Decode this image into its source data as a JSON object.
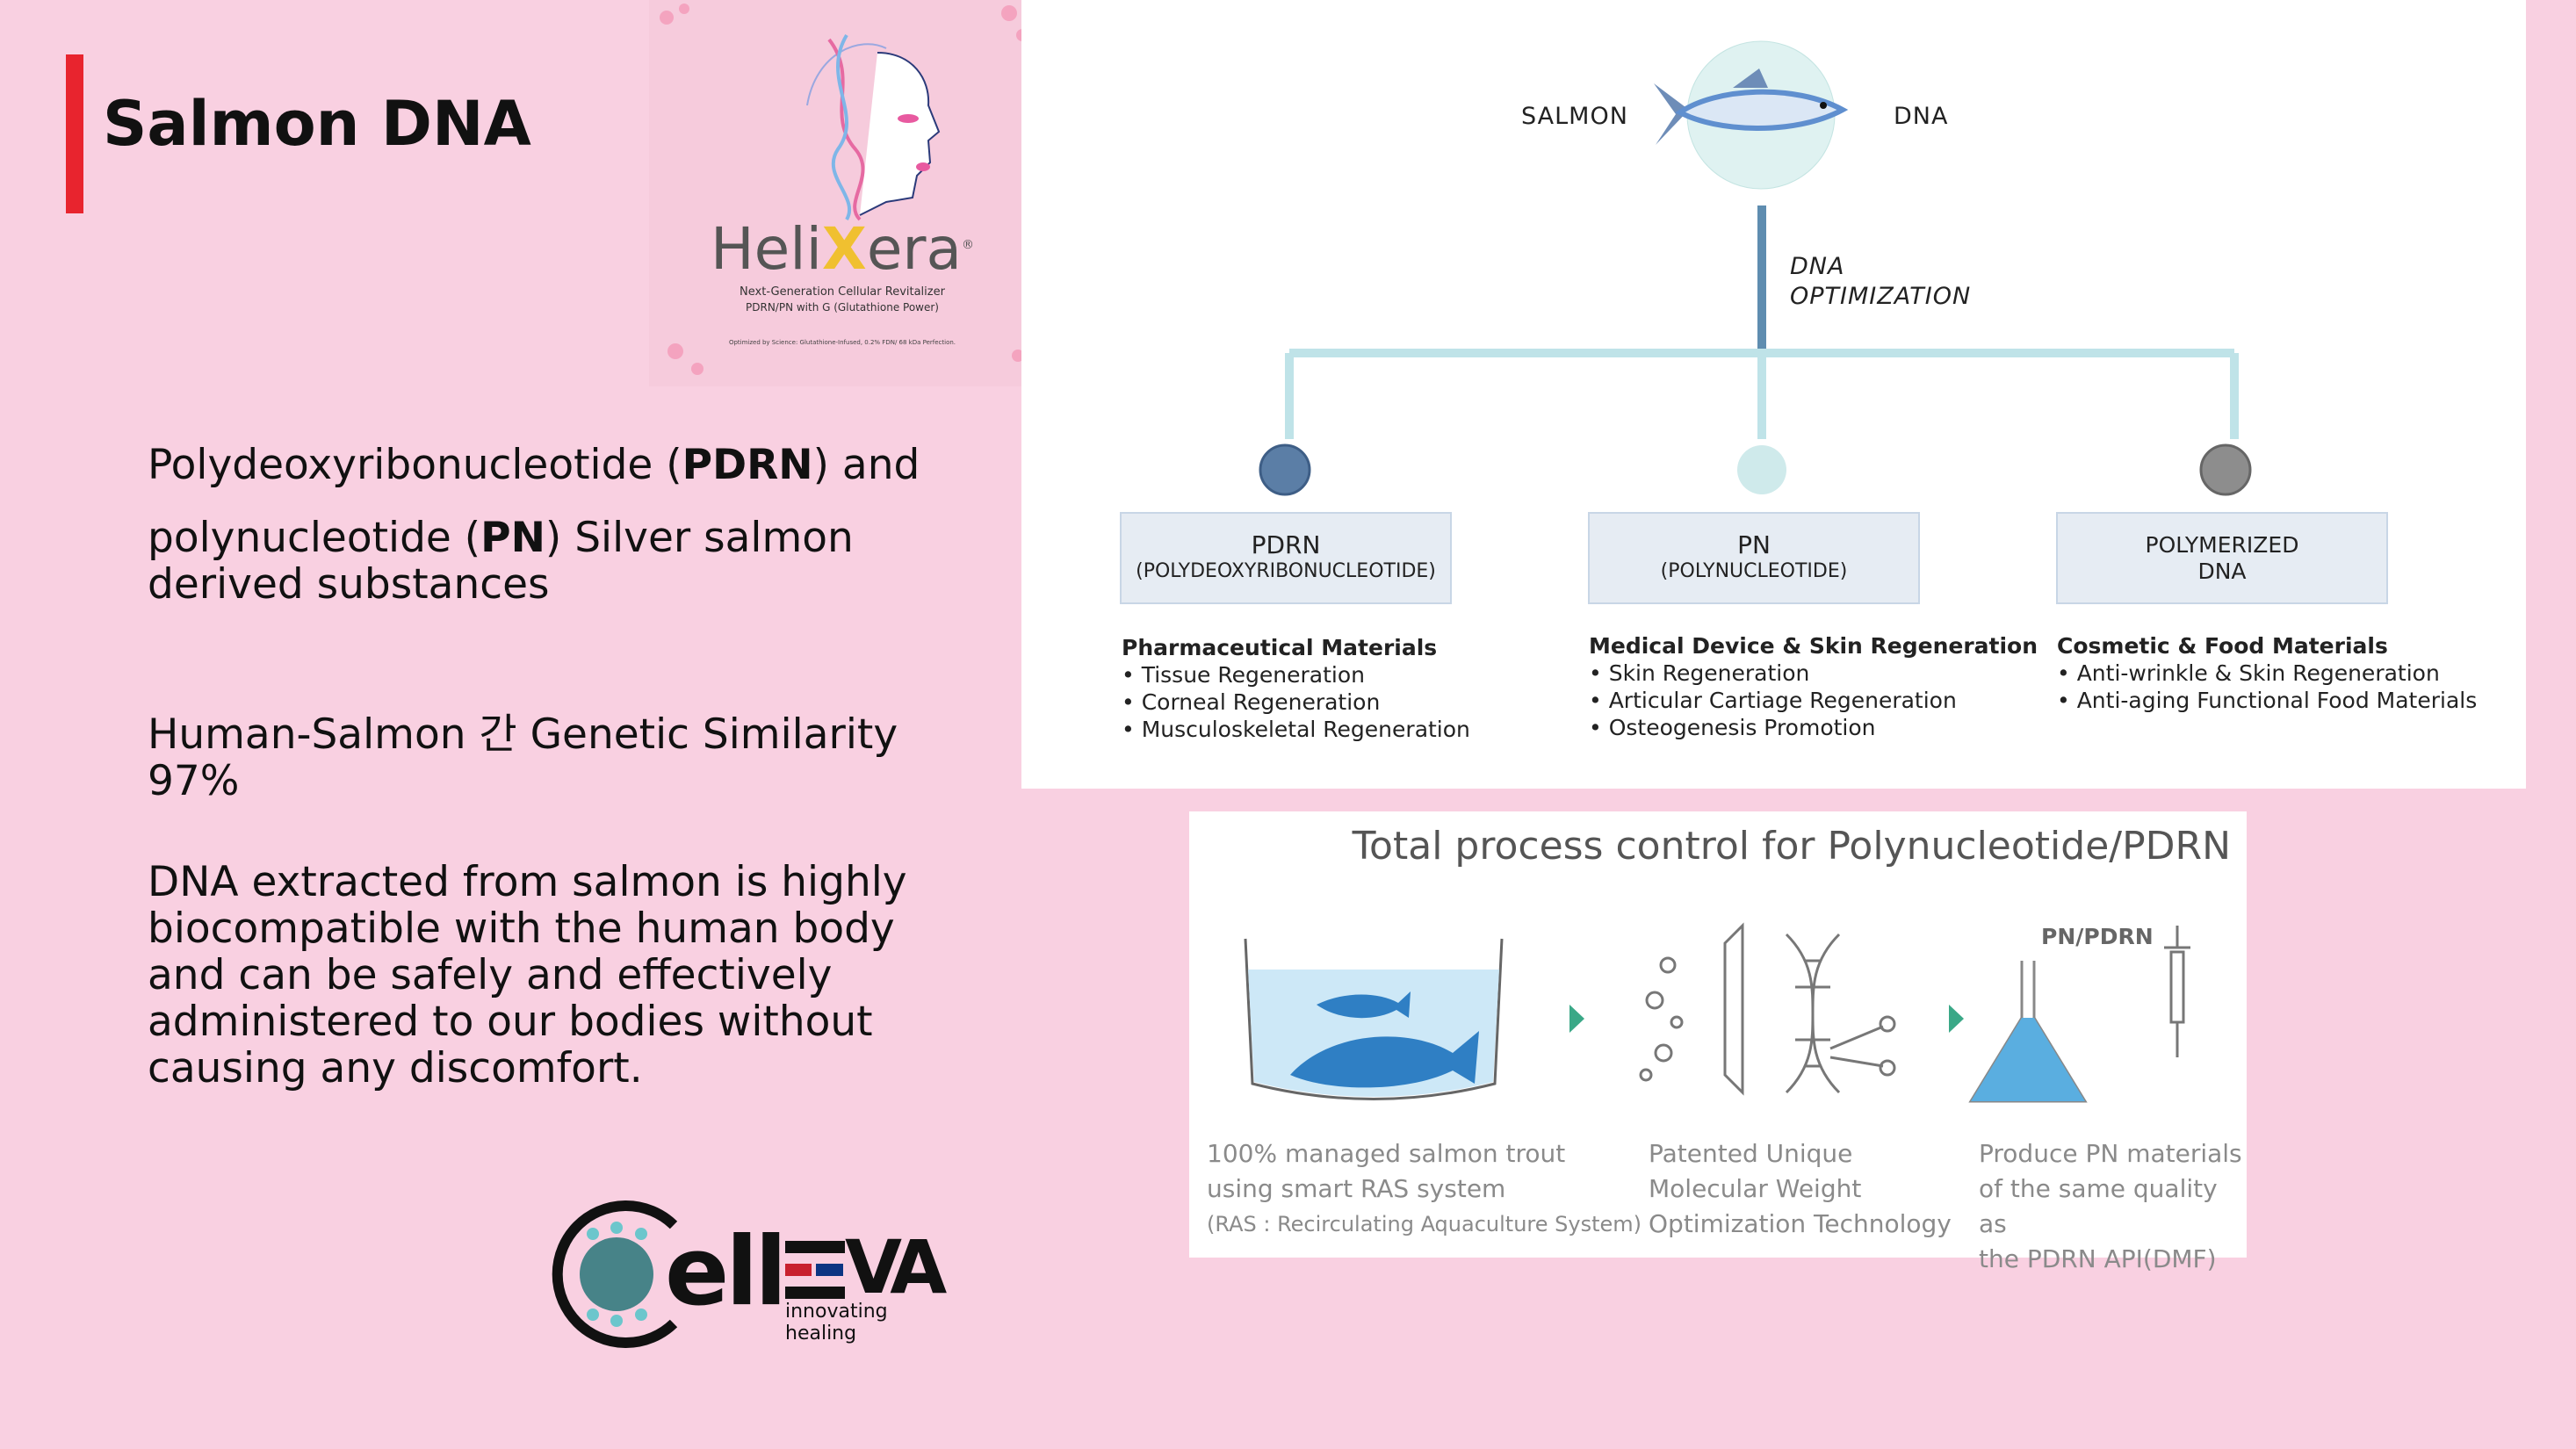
{
  "slide": {
    "title": "Salmon DNA",
    "paragraphs": {
      "p1_a": "Polydeoxyribonucleotide (",
      "p1_b": "PDRN",
      "p1_c": ") and",
      "p1_d": "polynucleotide (",
      "p1_e": "PN",
      "p1_f": ") Silver salmon derived substances",
      "p2": "Human-Salmon 간 Genetic Similarity 97%",
      "p3": "DNA extracted from salmon is highly biocompatible with the human body and can be safely and effectively administered to our bodies without causing any discomfort."
    }
  },
  "helixera": {
    "brand_a": "Heli",
    "brand_x": "X",
    "brand_b": "era",
    "registered": "®",
    "tagline": "Next-Generation Cellular Revitalizer",
    "subtag": "PDRN/PN with G (Glutathione Power)",
    "fineprint": "Optimized by Science: Glutathione-Infused, 0.2% FDN/ 68 kDa Perfection."
  },
  "diagram": {
    "left_label": "SALMON",
    "right_label": "DNA",
    "stem_label_1": "DNA",
    "stem_label_2": "OPTIMIZATION",
    "colors": {
      "pdrn": "#5b7ea6",
      "pn": "#cfeaeb",
      "polymerized": "#8d8d8d",
      "line": "#bfe3e8"
    },
    "branches": [
      {
        "title": "PDRN",
        "sub": "(POLYDEOXYRIBONUCLEOTIDE)",
        "heading": "Pharmaceutical Materials",
        "items": [
          "Tissue Regeneration",
          "Corneal Regeneration",
          "Musculoskeletal Regeneration"
        ]
      },
      {
        "title": "PN",
        "sub": "(POLYNUCLEOTIDE)",
        "heading": "Medical Device & Skin Regeneration",
        "items": [
          "Skin Regeneration",
          "Articular Cartiage Regeneration",
          "Osteogenesis Promotion"
        ]
      },
      {
        "title": "POLYMERIZED",
        "sub": "DNA",
        "heading": "Cosmetic & Food Materials",
        "items": [
          "Anti-wrinkle & Skin Regeneration",
          "Anti-aging Functional Food Materials"
        ]
      }
    ]
  },
  "process": {
    "title": "Total process control for Polynucleotide/PDRN",
    "flask_label": "PN/PDRN",
    "steps": [
      {
        "lines": [
          "100% managed salmon trout",
          "using smart RAS system",
          "(RAS : Recirculating Aquaculture System)"
        ]
      },
      {
        "lines": [
          "Patented Unique",
          "Molecular Weight",
          "Optimization Technology"
        ]
      },
      {
        "lines": [
          "Produce PN materials",
          "of the same quality as",
          "the PDRN API(DMF)"
        ]
      }
    ]
  },
  "logo": {
    "name_a": "ell",
    "name_b": "VA",
    "tagline": "innovating healing"
  }
}
